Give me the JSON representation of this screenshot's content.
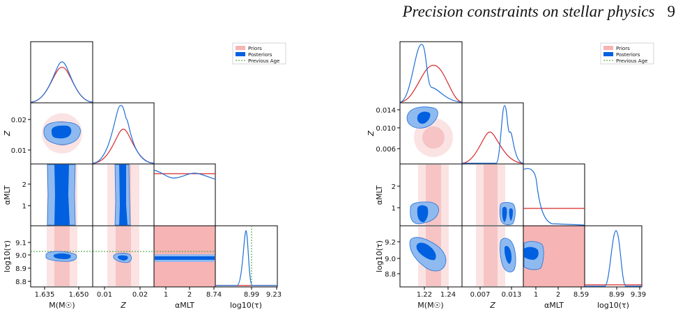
{
  "header": {
    "title": "Precision constraints on stellar physics",
    "page_number": "9"
  },
  "colors": {
    "prior_line": "#d62728",
    "prior_fill": "#f4a6a6",
    "posterior_line": "#1f6fd6",
    "posterior_dark": "#0060e0",
    "posterior_light": "#8fbaf0",
    "previous_age": "#2ca02c"
  },
  "legend": {
    "priors": "Priors",
    "posteriors": "Posteriors",
    "previous_age": "Previous Age"
  },
  "left_corner": {
    "ticks": {
      "x_mass": [
        "1.635",
        "1.650"
      ],
      "x_z": [
        "0.01",
        "0.02"
      ],
      "x_alpha": [
        "1",
        "2",
        "8.74"
      ],
      "x_age": [
        "8.99",
        "9.23"
      ],
      "y_z": [
        "0.02",
        "0.01"
      ],
      "y_alpha": [
        "2",
        "1"
      ],
      "y_age": [
        "9.1",
        "9.0",
        "8.9",
        "8.8"
      ]
    },
    "labels": {
      "x_mass": "M(M☉)",
      "x_z": "Z",
      "x_alpha": "αMLT",
      "x_age": "log10(τ)",
      "y_z": "Z",
      "y_alpha": "αMLT",
      "y_age": "log10(τ)"
    }
  },
  "right_corner": {
    "ticks": {
      "x_mass": [
        "1.22",
        "1.24"
      ],
      "x_z": [
        "0.007",
        "0.013"
      ],
      "x_alpha": [
        "1",
        "2",
        "8.59"
      ],
      "x_age": [
        "8.99",
        "9.39"
      ],
      "y_z": [
        "0.014",
        "0.010",
        "0.006"
      ],
      "y_alpha": [
        "2",
        "1"
      ],
      "y_age": [
        "9.2",
        "9.0",
        "8.8"
      ]
    },
    "labels": {
      "x_mass": "M(M☉)",
      "x_z": "Z",
      "x_alpha": "αMLT",
      "x_age": "log10(τ)",
      "y_z": "Z",
      "y_alpha": "αMLT",
      "y_age": "log10(τ)"
    }
  }
}
